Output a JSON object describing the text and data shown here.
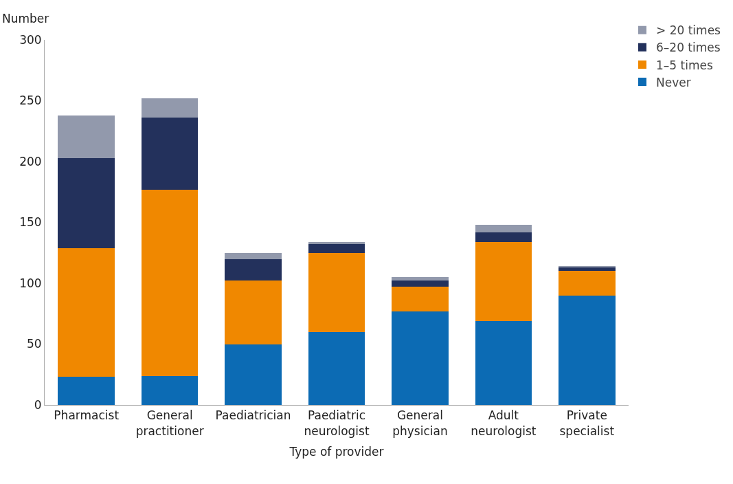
{
  "chart_data": {
    "type": "bar",
    "stacked": true,
    "xlabel": "Type of provider",
    "ylabel": "Number",
    "categories": [
      "Pharmacist",
      "General practitioner",
      "Paediatrician",
      "Paediatric neurologist",
      "General physician",
      "Adult neurologist",
      "Private specialist"
    ],
    "series": [
      {
        "name": "Never",
        "color": "#0c6bb4",
        "values": [
          23,
          24,
          50,
          60,
          77,
          69,
          90
        ]
      },
      {
        "name": "1–5 times",
        "color": "#f08800",
        "values": [
          106,
          153,
          52,
          65,
          20,
          65,
          20
        ]
      },
      {
        "name": "6–20 times",
        "color": "#23315c",
        "values": [
          74,
          59,
          18,
          7,
          5,
          8,
          3
        ]
      },
      {
        "name": "> 20 times",
        "color": "#9299ac",
        "values": [
          35,
          16,
          5,
          2,
          3,
          6,
          1
        ]
      }
    ],
    "ylim": [
      0,
      300
    ],
    "yticks": [
      0,
      50,
      100,
      150,
      200,
      250,
      300
    ],
    "legend": "top right"
  }
}
